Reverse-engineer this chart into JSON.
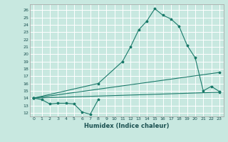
{
  "title": "",
  "xlabel": "Humidex (Indice chaleur)",
  "bg_color": "#c8e8e0",
  "grid_color": "#ffffff",
  "line_color": "#1a7a6a",
  "xlim": [
    -0.5,
    23.5
  ],
  "ylim": [
    11.5,
    26.8
  ],
  "yticks": [
    12,
    13,
    14,
    15,
    16,
    17,
    18,
    19,
    20,
    21,
    22,
    23,
    24,
    25,
    26
  ],
  "xticks": [
    0,
    1,
    2,
    3,
    4,
    5,
    6,
    7,
    8,
    9,
    10,
    11,
    12,
    13,
    14,
    15,
    16,
    17,
    18,
    19,
    20,
    21,
    22,
    23
  ],
  "line1_x": [
    0,
    1,
    2,
    3,
    4,
    5,
    6,
    7,
    8
  ],
  "line1_y": [
    14.0,
    13.8,
    13.2,
    13.3,
    13.3,
    13.2,
    12.1,
    11.8,
    13.8
  ],
  "line2_x": [
    0,
    8,
    11,
    12,
    13,
    14,
    15,
    16,
    17,
    18,
    19,
    20,
    21,
    22,
    23
  ],
  "line2_y": [
    14.0,
    16.0,
    19.0,
    21.0,
    23.3,
    24.5,
    26.2,
    25.3,
    24.8,
    23.8,
    21.2,
    19.5,
    15.0,
    15.6,
    14.9
  ],
  "line3_x": [
    0,
    23
  ],
  "line3_y": [
    14.0,
    17.5
  ],
  "line4_x": [
    0,
    23
  ],
  "line4_y": [
    14.0,
    14.8
  ]
}
